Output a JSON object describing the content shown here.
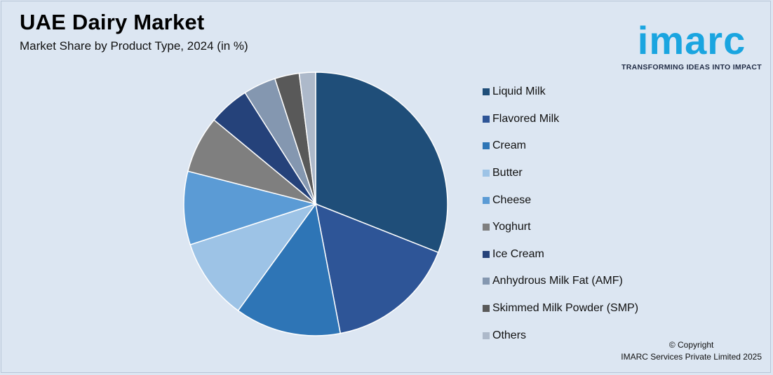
{
  "header": {
    "title": "UAE Dairy Market",
    "subtitle": "Market Share by Product Type, 2024 (in %)"
  },
  "logo": {
    "word": "imarc",
    "tagline": "TRANSFORMING IDEAS INTO IMPACT",
    "color": "#1aa5e0"
  },
  "footer": {
    "line1": "© Copyright",
    "line2": "IMARC Services Private Limited 2025"
  },
  "chart_data": {
    "type": "pie",
    "title": "UAE Dairy Market",
    "subtitle": "Market Share by Product Type, 2024 (in %)",
    "legend_position": "right",
    "categories": [
      "Liquid Milk",
      "Flavored Milk",
      "Cream",
      "Butter",
      "Cheese",
      "Yoghurt",
      "Ice Cream",
      "Anhydrous Milk Fat (AMF)",
      "Skimmed Milk Powder (SMP)",
      "Others"
    ],
    "values": [
      31,
      16,
      13,
      10,
      9,
      7,
      5,
      4,
      3,
      2
    ],
    "colors": [
      "#1f4e79",
      "#2e5597",
      "#2e75b6",
      "#9dc3e6",
      "#5b9bd5",
      "#7f7f7f",
      "#25427a",
      "#8497b0",
      "#595959",
      "#adb9ca"
    ]
  }
}
